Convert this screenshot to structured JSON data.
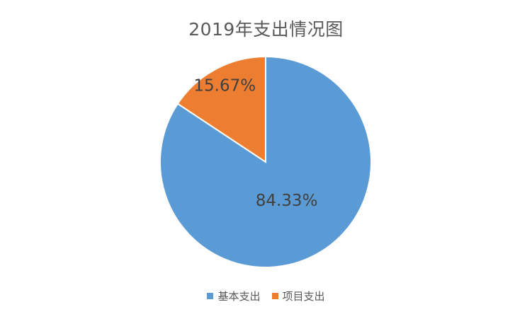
{
  "chart_data": {
    "type": "pie",
    "title": "2019年支出情况图",
    "categories": [
      "基本支出",
      "项目支出"
    ],
    "values": [
      84.33,
      15.67
    ],
    "labels": [
      "84.33%",
      "15.67%"
    ],
    "colors": [
      "#5B9BD5",
      "#ED7D31"
    ],
    "legend_position": "bottom"
  }
}
